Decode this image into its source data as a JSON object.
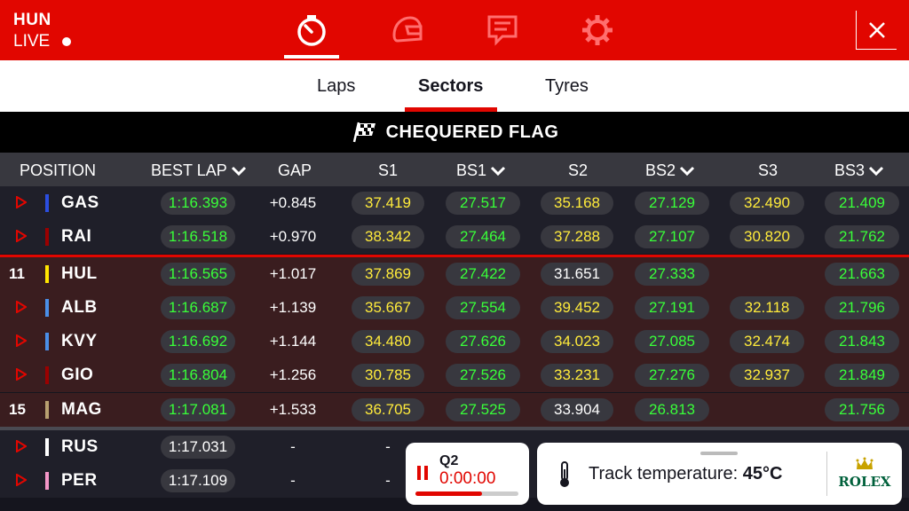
{
  "header": {
    "track": "HUN",
    "live_label": "LIVE",
    "icons": [
      "timer-icon",
      "helmet-icon",
      "race-control-icon",
      "settings-icon"
    ],
    "close_icon": "close-icon"
  },
  "tabs": [
    {
      "label": "Laps",
      "active": false
    },
    {
      "label": "Sectors",
      "active": true
    },
    {
      "label": "Tyres",
      "active": false
    }
  ],
  "banner": {
    "text": "CHEQUERED FLAG",
    "icon": "chequered-flag-icon"
  },
  "table": {
    "columns": [
      "POSITION",
      "BEST LAP",
      "GAP",
      "S1",
      "BS1",
      "S2",
      "BS2",
      "S3",
      "BS3"
    ],
    "sortable": [
      "BEST LAP",
      "BS1",
      "BS2",
      "BS3"
    ],
    "rows": [
      {
        "pos": "",
        "code": "GAS",
        "team": "#2b4ee0",
        "best": "1:16.393",
        "best_c": "green",
        "gap": "+0.845",
        "s1": "37.419",
        "s1_c": "yellow",
        "bs1": "27.517",
        "bs1_c": "green",
        "s2": "35.168",
        "s2_c": "yellow",
        "bs2": "27.129",
        "bs2_c": "green",
        "s3": "32.490",
        "s3_c": "yellow",
        "bs3": "21.409",
        "bs3_c": "green"
      },
      {
        "pos": "",
        "code": "RAI",
        "team": "#9b0000",
        "best": "1:16.518",
        "best_c": "green",
        "gap": "+0.970",
        "s1": "38.342",
        "s1_c": "yellow",
        "bs1": "27.464",
        "bs1_c": "green",
        "s2": "37.288",
        "s2_c": "yellow",
        "bs2": "27.107",
        "bs2_c": "green",
        "s3": "30.820",
        "s3_c": "yellow",
        "bs3": "21.762",
        "bs3_c": "green"
      },
      {
        "pos": "11",
        "code": "HUL",
        "team": "#ffe600",
        "best": "1:16.565",
        "best_c": "green",
        "gap": "+1.017",
        "s1": "37.869",
        "s1_c": "yellow",
        "bs1": "27.422",
        "bs1_c": "green",
        "s2": "31.651",
        "s2_c": "white",
        "bs2": "27.333",
        "bs2_c": "green",
        "s3": "",
        "s3_c": "white",
        "bs3": "21.663",
        "bs3_c": "green"
      },
      {
        "pos": "",
        "code": "ALB",
        "team": "#4a8fe8",
        "best": "1:16.687",
        "best_c": "green",
        "gap": "+1.139",
        "s1": "35.667",
        "s1_c": "yellow",
        "bs1": "27.554",
        "bs1_c": "green",
        "s2": "39.452",
        "s2_c": "yellow",
        "bs2": "27.191",
        "bs2_c": "green",
        "s3": "32.118",
        "s3_c": "yellow",
        "bs3": "21.796",
        "bs3_c": "green"
      },
      {
        "pos": "",
        "code": "KVY",
        "team": "#4a8fe8",
        "best": "1:16.692",
        "best_c": "green",
        "gap": "+1.144",
        "s1": "34.480",
        "s1_c": "yellow",
        "bs1": "27.626",
        "bs1_c": "green",
        "s2": "34.023",
        "s2_c": "yellow",
        "bs2": "27.085",
        "bs2_c": "green",
        "s3": "32.474",
        "s3_c": "yellow",
        "bs3": "21.843",
        "bs3_c": "green"
      },
      {
        "pos": "",
        "code": "GIO",
        "team": "#9b0000",
        "best": "1:16.804",
        "best_c": "green",
        "gap": "+1.256",
        "s1": "30.785",
        "s1_c": "yellow",
        "bs1": "27.526",
        "bs1_c": "green",
        "s2": "33.231",
        "s2_c": "yellow",
        "bs2": "27.276",
        "bs2_c": "green",
        "s3": "32.937",
        "s3_c": "yellow",
        "bs3": "21.849",
        "bs3_c": "green"
      },
      {
        "pos": "15",
        "code": "MAG",
        "team": "#b8a070",
        "best": "1:17.081",
        "best_c": "green",
        "gap": "+1.533",
        "s1": "36.705",
        "s1_c": "yellow",
        "bs1": "27.525",
        "bs1_c": "green",
        "s2": "33.904",
        "s2_c": "white",
        "bs2": "26.813",
        "bs2_c": "green",
        "s3": "",
        "s3_c": "white",
        "bs3": "21.756",
        "bs3_c": "green"
      },
      {
        "pos": "",
        "code": "RUS",
        "team": "#ffffff",
        "best": "1:17.031",
        "best_c": "white",
        "gap": "-",
        "s1": "-",
        "s1_c": "white",
        "bs1": "",
        "bs1_c": "green",
        "s2": "",
        "s2_c": "white",
        "bs2": "",
        "bs2_c": "green",
        "s3": "",
        "s3_c": "white",
        "bs3": "",
        "bs3_c": "green"
      },
      {
        "pos": "",
        "code": "PER",
        "team": "#f596c8",
        "best": "1:17.109",
        "best_c": "white",
        "gap": "-",
        "s1": "-",
        "s1_c": "white",
        "bs1": "",
        "bs1_c": "green",
        "s2": "",
        "s2_c": "white",
        "bs2": "",
        "bs2_c": "green",
        "s3": "",
        "s3_c": "white",
        "bs3": "",
        "bs3_c": "green"
      }
    ]
  },
  "session_card": {
    "label": "Q2",
    "timer": "0:00:00",
    "progress": 0.65
  },
  "weather_card": {
    "label": "Track temperature:",
    "value": "45°C",
    "sponsor": "ROLEX"
  },
  "colors": {
    "red": "#e10600",
    "green": "#39ff39",
    "yellow": "#ffeb3b",
    "pill": "#38383f"
  }
}
